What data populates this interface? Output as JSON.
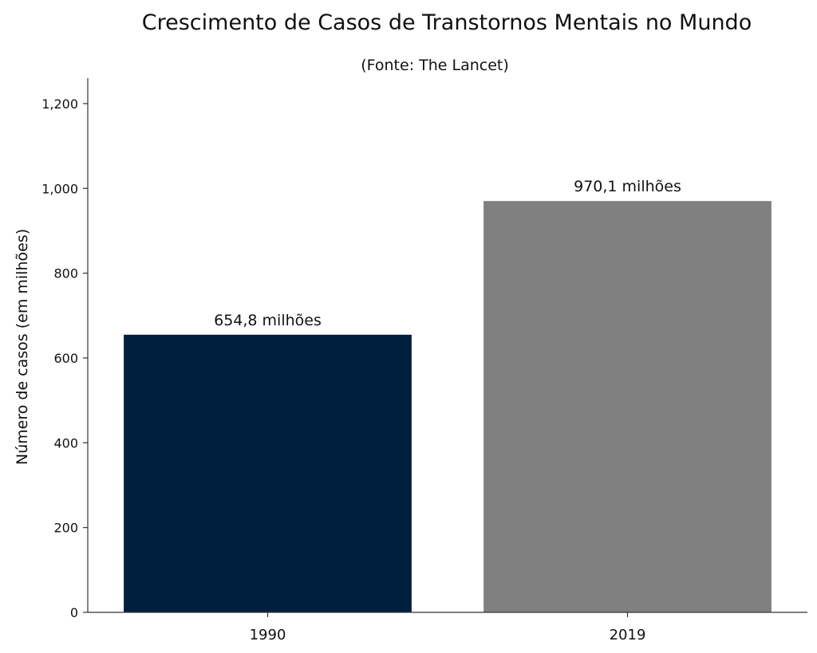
{
  "chart_data": {
    "type": "bar",
    "title": "Crescimento de Casos de Transtornos Mentais no Mundo",
    "subtitle": "(Fonte: The Lancet)",
    "xlabel": "",
    "ylabel": "Número de casos (em milhões)",
    "categories": [
      "1990",
      "2019"
    ],
    "values": [
      654.8,
      970.1
    ],
    "data_labels": [
      "654,8 milhões",
      "970,1 milhões"
    ],
    "colors": [
      "#001f3f",
      "#808080"
    ],
    "ylim": [
      0,
      1260
    ],
    "yticks": [
      0,
      200,
      400,
      600,
      800,
      1000,
      1200
    ],
    "ytick_labels": [
      "0",
      "200",
      "400",
      "600",
      "800",
      "1,000",
      "1,200"
    ],
    "grid": false,
    "legend": "none"
  }
}
